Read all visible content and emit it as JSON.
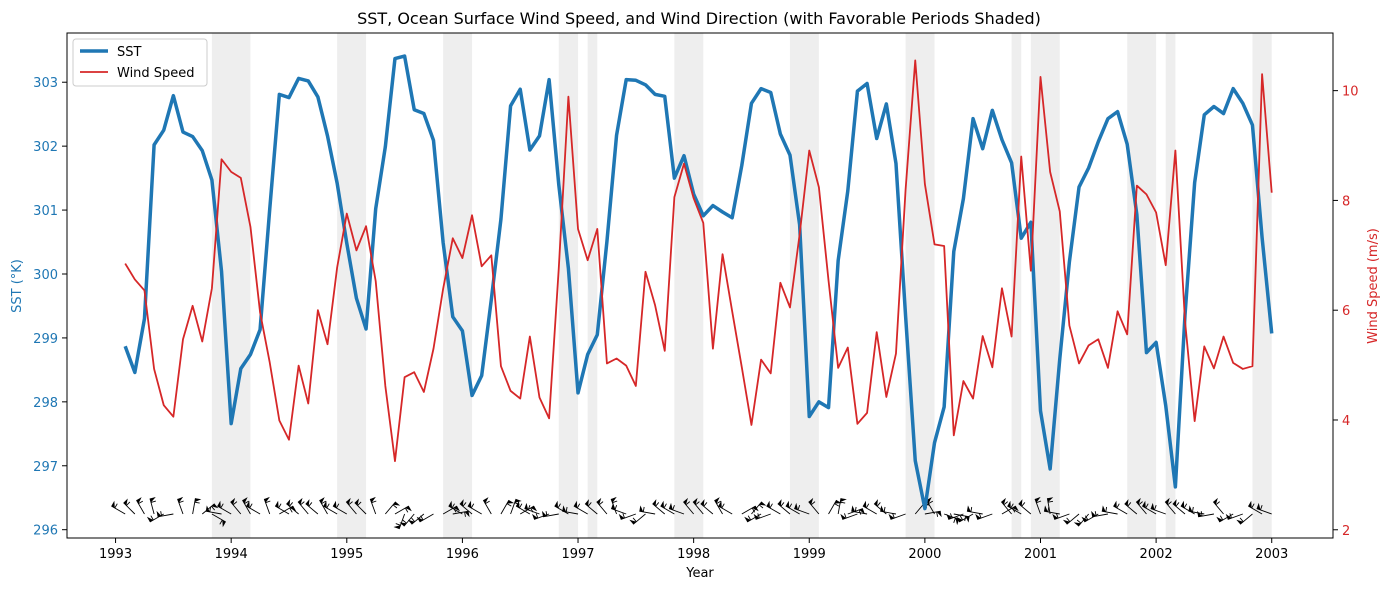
{
  "colors": {
    "sst": "#1f77b4",
    "wind": "#d62728",
    "shade": "#d9d9d9",
    "barb": "#000000"
  },
  "chart_data": {
    "type": "line",
    "title": "SST, Ocean Surface Wind Speed, and Wind Direction (with Favorable Periods Shaded)",
    "xlabel": "Year",
    "ylabel_left": "SST (°K)",
    "ylabel_right": "Wind Speed (m/s)",
    "x_ticks": [
      "1993",
      "1994",
      "1995",
      "1996",
      "1997",
      "1998",
      "1999",
      "2000",
      "2001",
      "2002",
      "2003"
    ],
    "y_left_ticks": [
      "296",
      "297",
      "298",
      "299",
      "300",
      "301",
      "302",
      "303"
    ],
    "y_right_ticks": [
      "2",
      "4",
      "6",
      "8",
      "10"
    ],
    "xlim": [
      1992.58,
      2003.53
    ],
    "ylim_left": [
      295.87,
      303.77
    ],
    "ylim_right": [
      1.85,
      11.05
    ],
    "grid": false,
    "legend_position": "top-left",
    "x_start": "1993-01",
    "x_step_months": 1,
    "series": [
      {
        "name": "SST",
        "axis": "left",
        "values": [
          298.87,
          298.46,
          299.3,
          302.02,
          302.25,
          302.79,
          302.22,
          302.15,
          301.93,
          301.47,
          300.04,
          297.66,
          298.52,
          298.74,
          299.13,
          301.01,
          302.81,
          302.76,
          303.06,
          303.02,
          302.77,
          302.16,
          301.42,
          300.48,
          299.62,
          299.14,
          301.02,
          301.99,
          303.37,
          303.41,
          302.57,
          302.51,
          302.09,
          300.49,
          299.33,
          299.11,
          298.1,
          298.41,
          299.6,
          300.86,
          302.63,
          302.89,
          301.94,
          302.16,
          303.04,
          301.4,
          300.09,
          298.14,
          298.74,
          299.05,
          300.51,
          302.17,
          303.04,
          303.03,
          302.96,
          302.81,
          302.78,
          301.5,
          301.85,
          301.25,
          300.91,
          301.07,
          300.97,
          300.88,
          301.7,
          302.67,
          302.9,
          302.84,
          302.19,
          301.86,
          300.77,
          297.77,
          298.0,
          297.91,
          300.21,
          301.3,
          302.86,
          302.98,
          302.12,
          302.66,
          301.73,
          299.34,
          297.08,
          296.33,
          297.36,
          297.92,
          300.35,
          301.18,
          302.43,
          301.96,
          302.56,
          302.1,
          301.74,
          300.56,
          300.81,
          297.86,
          296.95,
          298.67,
          300.19,
          301.36,
          301.66,
          302.07,
          302.43,
          302.54,
          302.03,
          300.93,
          298.77,
          298.93,
          297.94,
          296.67,
          299.36,
          301.43,
          302.49,
          302.62,
          302.51,
          302.9,
          302.67,
          302.33,
          300.57,
          299.07
        ]
      },
      {
        "name": "Wind Speed",
        "axis": "right",
        "values": [
          6.85,
          6.56,
          6.36,
          4.93,
          4.27,
          4.06,
          5.47,
          6.08,
          5.43,
          6.4,
          8.75,
          8.52,
          8.41,
          7.52,
          5.96,
          5.05,
          3.99,
          3.64,
          4.99,
          4.3,
          6.0,
          5.38,
          6.78,
          7.76,
          7.09,
          7.53,
          6.53,
          4.62,
          3.25,
          4.78,
          4.87,
          4.51,
          5.3,
          6.39,
          7.31,
          6.95,
          7.73,
          6.8,
          7.0,
          4.98,
          4.53,
          4.39,
          5.52,
          4.41,
          4.03,
          6.76,
          9.89,
          7.48,
          6.91,
          7.48,
          5.03,
          5.12,
          4.99,
          4.62,
          6.7,
          6.09,
          5.26,
          8.06,
          8.67,
          8.04,
          7.59,
          5.3,
          7.02,
          5.98,
          4.96,
          3.91,
          5.1,
          4.85,
          6.5,
          6.05,
          7.38,
          8.91,
          8.24,
          6.54,
          4.95,
          5.32,
          3.93,
          4.13,
          5.6,
          4.42,
          5.21,
          8.2,
          10.55,
          8.3,
          7.2,
          7.17,
          3.72,
          4.71,
          4.39,
          5.53,
          4.96,
          6.4,
          5.52,
          8.8,
          6.72,
          10.25,
          8.52,
          7.8,
          5.72,
          5.03,
          5.36,
          5.47,
          4.95,
          5.98,
          5.56,
          8.27,
          8.11,
          7.78,
          6.82,
          8.91,
          5.8,
          3.98,
          5.34,
          4.94,
          5.52,
          5.04,
          4.93,
          4.98,
          10.3,
          8.14
        ]
      }
    ],
    "favorable_periods": [
      [
        "1993-11",
        "1994-03"
      ],
      [
        "1994-12",
        "1995-03"
      ],
      [
        "1995-11",
        "1996-01"
      ],
      [
        "1996-01",
        "1996-02"
      ],
      [
        "1996-11",
        "1997-01"
      ],
      [
        "1997-02",
        "1997-03"
      ],
      [
        "1997-11",
        "1998-02"
      ],
      [
        "1998-11",
        "1999-02"
      ],
      [
        "1999-11",
        "2000-02"
      ],
      [
        "2000-10",
        "2000-11"
      ],
      [
        "2000-12",
        "2001-03"
      ],
      [
        "2001-10",
        "2002-01"
      ],
      [
        "2002-02",
        "2002-03"
      ],
      [
        "2002-11",
        "2003-01"
      ]
    ],
    "wind_direction_deg": [
      300,
      315,
      330,
      345,
      240,
      260,
      340,
      10,
      50,
      120,
      280,
      300,
      320,
      330,
      300,
      340,
      60,
      300,
      310,
      320,
      310,
      330,
      300,
      300,
      320,
      315,
      340,
      40,
      60,
      200,
      220,
      230,
      240,
      60,
      80,
      300,
      310,
      300,
      330,
      30,
      20,
      60,
      300,
      290,
      250,
      260,
      300,
      280,
      300,
      310,
      320,
      340,
      290,
      250,
      230,
      280,
      310,
      300,
      290,
      320,
      320,
      310,
      330,
      300,
      60,
      40,
      240,
      250,
      300,
      310,
      300,
      290,
      320,
      30,
      10,
      70,
      250,
      280,
      300,
      310,
      280,
      250,
      40,
      80,
      330,
      110,
      100,
      250,
      240,
      280,
      250,
      60,
      320,
      300,
      310,
      340,
      350,
      280,
      250,
      230,
      220,
      240,
      260,
      280,
      300,
      310,
      320,
      300,
      290,
      320,
      310,
      300,
      280,
      260,
      320,
      240,
      250,
      230,
      300,
      290
    ]
  }
}
